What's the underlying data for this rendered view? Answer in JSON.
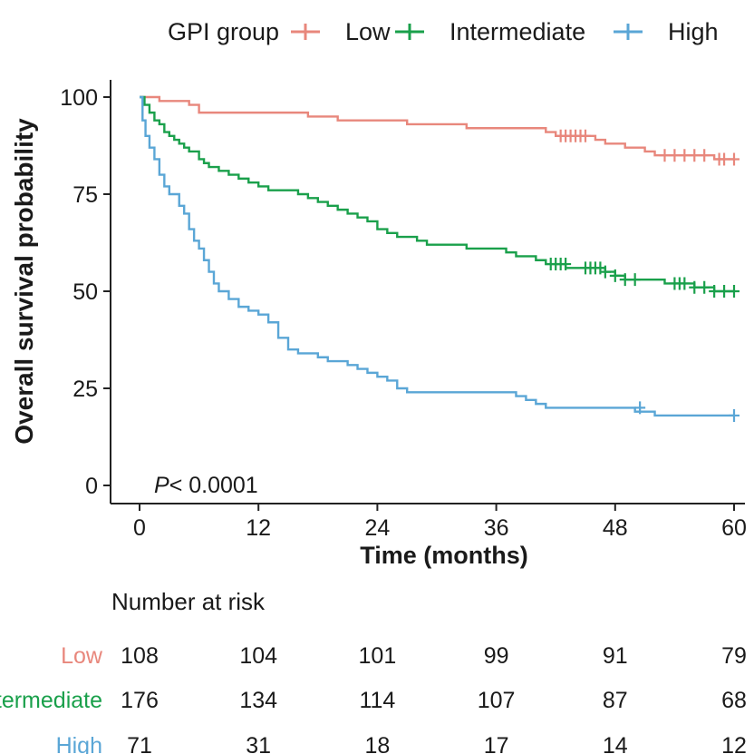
{
  "chart_data": {
    "type": "line",
    "subtype": "kaplan-meier",
    "title": "",
    "xlabel": "Time (months)",
    "ylabel": "Overall survival probability",
    "xlim": [
      0,
      60
    ],
    "ylim": [
      0,
      100
    ],
    "xticks": [
      0,
      12,
      24,
      36,
      48,
      60
    ],
    "yticks": [
      0,
      25,
      50,
      75,
      100
    ],
    "grid": false,
    "legend": {
      "title": "GPI group",
      "position": "top"
    },
    "annotation": "P< 0.0001",
    "series": [
      {
        "name": "Low",
        "color": "#e8877c",
        "steps": [
          [
            0,
            100
          ],
          [
            2,
            99
          ],
          [
            5,
            98
          ],
          [
            6,
            96
          ],
          [
            15,
            96
          ],
          [
            17,
            95
          ],
          [
            20,
            94
          ],
          [
            27,
            93
          ],
          [
            33,
            92
          ],
          [
            41,
            91
          ],
          [
            42,
            90
          ],
          [
            45,
            90
          ],
          [
            46,
            89
          ],
          [
            47,
            88
          ],
          [
            49,
            87
          ],
          [
            51,
            86
          ],
          [
            52,
            85
          ],
          [
            56,
            85
          ],
          [
            58,
            84
          ],
          [
            60,
            84
          ]
        ],
        "censor": [
          [
            42.5,
            90
          ],
          [
            43,
            90
          ],
          [
            43.5,
            90
          ],
          [
            44,
            90
          ],
          [
            44.5,
            90
          ],
          [
            45,
            90
          ],
          [
            53,
            85
          ],
          [
            54,
            85
          ],
          [
            55,
            85
          ],
          [
            56,
            85
          ],
          [
            57,
            85
          ],
          [
            58.5,
            84
          ],
          [
            59,
            84
          ],
          [
            60,
            84
          ]
        ]
      },
      {
        "name": "Intermediate",
        "color": "#1aa04b",
        "steps": [
          [
            0,
            100
          ],
          [
            0.5,
            98
          ],
          [
            1,
            96
          ],
          [
            1.5,
            94
          ],
          [
            2,
            93
          ],
          [
            2.5,
            91
          ],
          [
            3,
            90
          ],
          [
            3.5,
            89
          ],
          [
            4,
            88
          ],
          [
            4.5,
            87
          ],
          [
            5,
            86
          ],
          [
            6,
            84
          ],
          [
            6.5,
            83
          ],
          [
            7,
            82
          ],
          [
            8,
            81
          ],
          [
            9,
            80
          ],
          [
            10,
            79
          ],
          [
            11,
            78
          ],
          [
            12,
            77
          ],
          [
            13,
            76
          ],
          [
            15,
            76
          ],
          [
            16,
            75
          ],
          [
            17,
            74
          ],
          [
            18,
            73
          ],
          [
            19,
            72
          ],
          [
            20,
            71
          ],
          [
            21,
            70
          ],
          [
            22,
            69
          ],
          [
            23,
            68
          ],
          [
            24,
            66
          ],
          [
            25,
            65
          ],
          [
            26,
            64
          ],
          [
            27,
            64
          ],
          [
            28,
            63
          ],
          [
            29,
            62
          ],
          [
            32,
            62
          ],
          [
            33,
            61
          ],
          [
            36,
            61
          ],
          [
            37,
            60
          ],
          [
            38,
            59
          ],
          [
            40,
            58
          ],
          [
            41,
            57
          ],
          [
            42,
            57
          ],
          [
            43,
            56
          ],
          [
            45,
            56
          ],
          [
            47,
            55
          ],
          [
            48,
            54
          ],
          [
            49,
            53
          ],
          [
            51,
            53
          ],
          [
            53,
            52
          ],
          [
            55,
            52
          ],
          [
            56,
            51
          ],
          [
            58,
            50
          ],
          [
            60,
            50
          ]
        ],
        "censor": [
          [
            41.5,
            57
          ],
          [
            42,
            57
          ],
          [
            42.5,
            57
          ],
          [
            43,
            57
          ],
          [
            45,
            56
          ],
          [
            45.5,
            56
          ],
          [
            46,
            56
          ],
          [
            46.5,
            56
          ],
          [
            47,
            55
          ],
          [
            48,
            54
          ],
          [
            49,
            53
          ],
          [
            50,
            53
          ],
          [
            54,
            52
          ],
          [
            54.5,
            52
          ],
          [
            55,
            52
          ],
          [
            56,
            51
          ],
          [
            57,
            51
          ],
          [
            58,
            50
          ],
          [
            59,
            50
          ],
          [
            60,
            50
          ]
        ]
      },
      {
        "name": "High",
        "color": "#5aa6d6",
        "steps": [
          [
            0,
            100
          ],
          [
            0.3,
            94
          ],
          [
            0.6,
            90
          ],
          [
            1,
            87
          ],
          [
            1.5,
            84
          ],
          [
            2,
            80
          ],
          [
            2.5,
            77
          ],
          [
            3,
            75
          ],
          [
            4,
            72
          ],
          [
            4.5,
            70
          ],
          [
            5,
            66
          ],
          [
            5.5,
            63
          ],
          [
            6,
            61
          ],
          [
            6.5,
            58
          ],
          [
            7,
            55
          ],
          [
            7.5,
            52
          ],
          [
            8,
            50
          ],
          [
            9,
            48
          ],
          [
            10,
            46
          ],
          [
            11,
            45
          ],
          [
            12,
            44
          ],
          [
            13,
            42
          ],
          [
            14,
            38
          ],
          [
            15,
            35
          ],
          [
            16,
            34
          ],
          [
            18,
            33
          ],
          [
            19,
            32
          ],
          [
            21,
            31
          ],
          [
            22,
            30
          ],
          [
            23,
            29
          ],
          [
            24,
            28
          ],
          [
            25,
            27
          ],
          [
            26,
            25
          ],
          [
            27,
            24
          ],
          [
            37,
            24
          ],
          [
            38,
            23
          ],
          [
            39,
            22
          ],
          [
            40,
            21
          ],
          [
            41,
            20
          ],
          [
            43,
            20
          ],
          [
            46,
            20
          ],
          [
            49,
            20
          ],
          [
            50,
            19
          ],
          [
            52,
            18
          ],
          [
            60,
            18
          ]
        ],
        "censor": [
          [
            50.5,
            20
          ],
          [
            60,
            18
          ]
        ]
      }
    ],
    "risk_table": {
      "title": "Number at risk",
      "times": [
        0,
        12,
        24,
        36,
        48,
        60
      ],
      "rows": [
        {
          "group": "Low",
          "values": [
            "108",
            "104",
            "101",
            "99",
            "91",
            "79"
          ]
        },
        {
          "group": "Intermediate",
          "values": [
            "176",
            "134",
            "114",
            "107",
            "87",
            "68"
          ]
        },
        {
          "group": "High",
          "values": [
            "71",
            "31",
            "18",
            "17",
            "14",
            "12"
          ]
        }
      ]
    }
  }
}
